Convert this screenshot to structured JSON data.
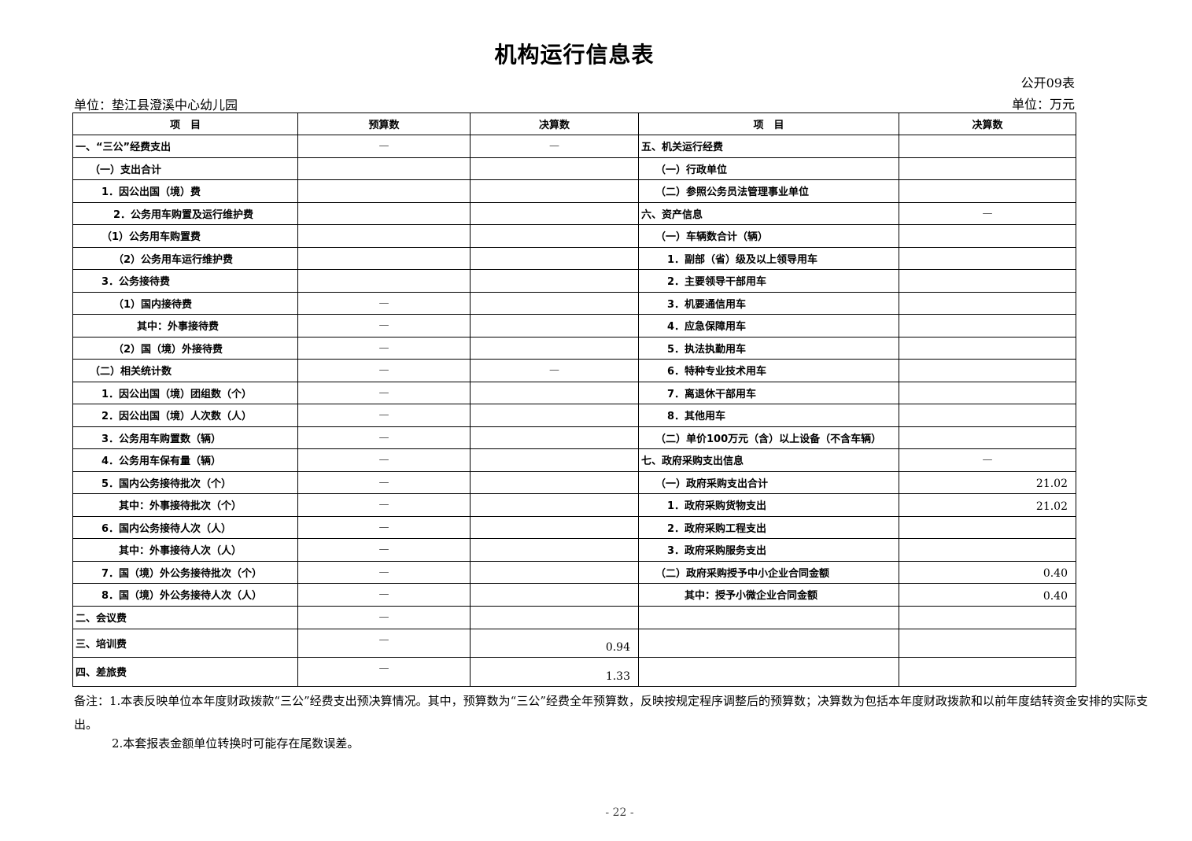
{
  "title": "机构运行信息表",
  "form_no": "公开09表",
  "unit_left": "单位：垫江县澄溪中心幼儿园",
  "unit_right": "单位：万元",
  "headers": [
    "项　目",
    "预算数",
    "决算数",
    "项　目",
    "决算数"
  ],
  "rows": [
    [
      "一、“三公”经费支出",
      "—",
      "—",
      "五、机关运行经费",
      ""
    ],
    [
      "（一）支出合计",
      "",
      "",
      "（一）行政单位",
      ""
    ],
    [
      "1．因公出国（境）费",
      "",
      "",
      "（二）参照公务员法管理事业单位",
      ""
    ],
    [
      "2．公务用车购置及运行维护费",
      "",
      "",
      "六、资产信息",
      "—"
    ],
    [
      "（1）公务用车购置费",
      "",
      "",
      "（一）车辆数合计（辆）",
      ""
    ],
    [
      "（2）公务用车运行维护费",
      "",
      "",
      "1．副部（省）级及以上领导用车",
      ""
    ],
    [
      "3．公务接待费",
      "",
      "",
      "2．主要领导干部用车",
      ""
    ],
    [
      "（1）国内接待费",
      "—",
      "",
      "3．机要通信用车",
      ""
    ],
    [
      "其中：外事接待费",
      "—",
      "",
      "4．应急保障用车",
      ""
    ],
    [
      "（2）国（境）外接待费",
      "—",
      "",
      "5．执法执勤用车",
      ""
    ],
    [
      "（二）相关统计数",
      "—",
      "—",
      "6．特种专业技术用车",
      ""
    ],
    [
      "1．因公出国（境）团组数（个）",
      "—",
      "",
      "7．离退休干部用车",
      ""
    ],
    [
      "2．因公出国（境）人次数（人）",
      "—",
      "",
      "8．其他用车",
      ""
    ],
    [
      "3．公务用车购置数（辆）",
      "—",
      "",
      "（二）单价100万元（含）以上设备（不含车辆）",
      ""
    ],
    [
      "4．公务用车保有量（辆）",
      "—",
      "",
      "七、政府采购支出信息",
      "—"
    ],
    [
      "5．国内公务接待批次（个）",
      "—",
      "",
      "（一）政府采购支出合计",
      "21.02"
    ],
    [
      "其中：外事接待批次（个）",
      "—",
      "",
      "1．政府采购货物支出",
      "21.02"
    ],
    [
      "6．国内公务接待人次（人）",
      "—",
      "",
      "2．政府采购工程支出",
      ""
    ],
    [
      "其中：外事接待人次（人）",
      "—",
      "",
      "3．政府采购服务支出",
      ""
    ],
    [
      "7．国（境）外公务接待批次（个）",
      "—",
      "",
      "（二）政府采购授予中小企业合同金额",
      "0.40"
    ],
    [
      "8．国（境）外公务接待人次（人）",
      "—",
      "",
      "其中：授予小微企业合同金额",
      "0.40"
    ],
    [
      "二、会议费",
      "—",
      "",
      "",
      ""
    ],
    [
      "三、培训费",
      "—",
      "0.94",
      "",
      ""
    ],
    [
      "四、差旅费",
      "—",
      "1.33",
      "",
      ""
    ]
  ],
  "notes": {
    "note1": "备注：1.本表反映单位本年度财政拨款“三公”经费支出预决算情况。其中，预算数为“三公”经费全年预算数，反映按规定程序调整后的预算数；决算数为包括本年度财政拨款和以前年度结转资金安排的实际支出。",
    "note2": "2.本套报表金额单位转换时可能存在尾数误差。"
  },
  "page_number": "- 22 -"
}
